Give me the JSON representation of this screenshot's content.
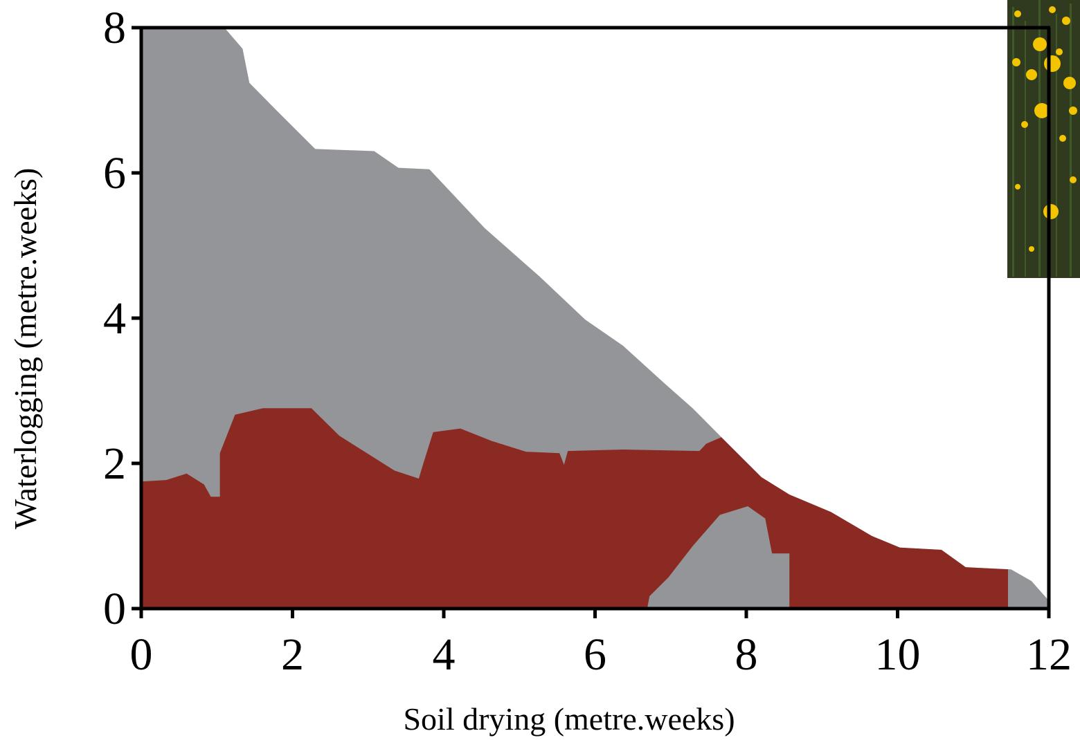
{
  "chart_data": {
    "type": "area",
    "xlabel": "Soil drying (metre.weeks)",
    "ylabel": "Waterlogging (metre.weeks)",
    "xlim": [
      0,
      12
    ],
    "ylim": [
      0,
      8
    ],
    "xticks": [
      0,
      2,
      4,
      6,
      8,
      10,
      12
    ],
    "yticks": [
      0,
      2,
      4,
      6,
      8
    ],
    "series": [
      {
        "color": "#939598",
        "x": [
          0,
          1.1,
          1.34,
          1.43,
          1.79,
          2.3,
          3.08,
          3.4,
          3.81,
          4.54,
          5.27,
          5.87,
          6.37,
          6.92,
          7.29,
          7.7,
          8.2,
          8.57,
          9.12,
          9.66,
          10.03,
          10.58,
          10.9,
          11.5,
          11.77,
          12
        ],
        "values": [
          8,
          8,
          7.71,
          7.24,
          6.86,
          6.33,
          6.3,
          6.07,
          6.05,
          5.24,
          4.57,
          3.98,
          3.62,
          3.1,
          2.76,
          2.33,
          1.81,
          1.57,
          1.33,
          1.0,
          0.84,
          0.81,
          0.57,
          0.54,
          0.38,
          0.11
        ]
      },
      {
        "color": "#8b2a22",
        "x": [
          0,
          0.33,
          0.6,
          0.83,
          0.92,
          1.04,
          1.04,
          1.24,
          1.61,
          2.25,
          2.62,
          3.35,
          3.67,
          3.73,
          3.86,
          4.22,
          4.63,
          5.09,
          5.53,
          5.59,
          5.64,
          6.37,
          7.38,
          7.47,
          7.67,
          8.2,
          8.57,
          9.12,
          9.66,
          10.03,
          10.58,
          10.9,
          11.46
        ],
        "values": [
          1.75,
          1.77,
          1.86,
          1.71,
          1.54,
          1.54,
          2.14,
          2.67,
          2.76,
          2.76,
          2.38,
          1.9,
          1.79,
          2.0,
          2.43,
          2.48,
          2.31,
          2.16,
          2.14,
          1.98,
          2.17,
          2.19,
          2.17,
          2.27,
          2.36,
          1.81,
          1.57,
          1.33,
          1.0,
          0.84,
          0.81,
          0.57,
          0.54
        ]
      },
      {
        "color": "#939598",
        "x": [
          6.69,
          6.72,
          6.97,
          7.29,
          7.65,
          8.02,
          8.25,
          8.34,
          8.57,
          8.57
        ],
        "values": [
          0,
          0.17,
          0.43,
          0.86,
          1.29,
          1.41,
          1.24,
          0.76,
          0.76,
          0
        ]
      }
    ]
  }
}
